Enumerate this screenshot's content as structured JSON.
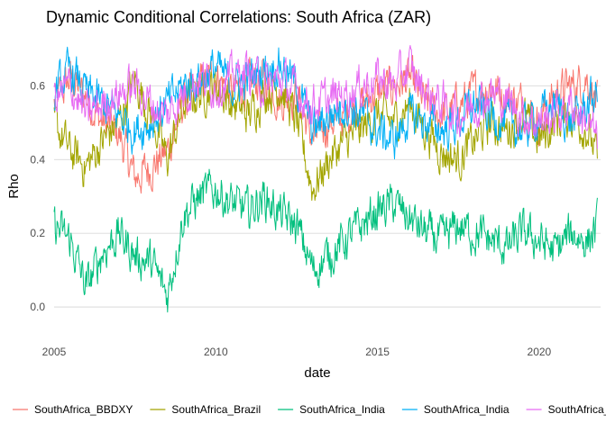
{
  "chart_data": {
    "type": "line",
    "title": "Dynamic Conditional Correlations: South Africa (ZAR)",
    "xlabel": "date",
    "ylabel": "Rho",
    "xlim": [
      2005,
      2021.9
    ],
    "ylim": [
      -0.09,
      0.74
    ],
    "x_ticks": [
      2005,
      2010,
      2015,
      2020
    ],
    "x_tick_labels": [
      "2005",
      "2010",
      "2015",
      "2020"
    ],
    "y_ticks": [
      0.0,
      0.2,
      0.4,
      0.6
    ],
    "y_tick_labels": [
      "0.0",
      "0.2",
      "0.4",
      "0.6"
    ],
    "grid": true,
    "legend_position": "bottom",
    "legend_title_visible_fragment": "s",
    "series": [
      {
        "name": "SouthAfrica_BBDXY",
        "color": "#F8766D",
        "x": [
          2005,
          2005.5,
          2006,
          2006.5,
          2007,
          2007.5,
          2008,
          2008.5,
          2009,
          2009.5,
          2010,
          2010.5,
          2011,
          2011.5,
          2012,
          2012.5,
          2013,
          2013.5,
          2014,
          2014.5,
          2015,
          2015.5,
          2016,
          2016.5,
          2017,
          2017.5,
          2018,
          2018.5,
          2019,
          2019.5,
          2020,
          2020.5,
          2021,
          2021.5,
          2021.8
        ],
        "y": [
          0.55,
          0.62,
          0.57,
          0.5,
          0.47,
          0.35,
          0.38,
          0.42,
          0.55,
          0.6,
          0.63,
          0.58,
          0.6,
          0.62,
          0.56,
          0.58,
          0.45,
          0.5,
          0.52,
          0.55,
          0.58,
          0.6,
          0.62,
          0.55,
          0.52,
          0.55,
          0.58,
          0.6,
          0.57,
          0.55,
          0.5,
          0.58,
          0.6,
          0.62,
          0.55
        ]
      },
      {
        "name": "SouthAfrica_Brazil",
        "color": "#A3A500",
        "x": [
          2005,
          2005.5,
          2006,
          2006.5,
          2007,
          2007.5,
          2008,
          2008.5,
          2009,
          2009.5,
          2010,
          2010.5,
          2011,
          2011.5,
          2012,
          2012.5,
          2013,
          2013.5,
          2014,
          2014.5,
          2015,
          2015.5,
          2016,
          2016.5,
          2017,
          2017.5,
          2018,
          2018.5,
          2019,
          2019.5,
          2020,
          2020.5,
          2021,
          2021.5,
          2021.8
        ],
        "y": [
          0.5,
          0.42,
          0.38,
          0.45,
          0.5,
          0.62,
          0.52,
          0.4,
          0.55,
          0.58,
          0.6,
          0.55,
          0.52,
          0.58,
          0.6,
          0.5,
          0.32,
          0.4,
          0.45,
          0.48,
          0.52,
          0.5,
          0.55,
          0.48,
          0.42,
          0.4,
          0.45,
          0.5,
          0.48,
          0.52,
          0.45,
          0.5,
          0.52,
          0.48,
          0.4
        ]
      },
      {
        "name": "SouthAfrica_India",
        "color": "#00BF7D",
        "x": [
          2005,
          2005.5,
          2006,
          2006.5,
          2007,
          2007.5,
          2008,
          2008.5,
          2009,
          2009.5,
          2010,
          2010.5,
          2011,
          2011.5,
          2012,
          2012.5,
          2013,
          2013.5,
          2014,
          2014.5,
          2015,
          2015.5,
          2016,
          2016.5,
          2017,
          2017.5,
          2018,
          2018.5,
          2019,
          2019.5,
          2020,
          2020.5,
          2021,
          2021.5,
          2021.8
        ],
        "y": [
          0.22,
          0.18,
          0.05,
          0.15,
          0.2,
          0.14,
          0.12,
          0.03,
          0.25,
          0.3,
          0.32,
          0.28,
          0.26,
          0.3,
          0.25,
          0.22,
          0.1,
          0.14,
          0.18,
          0.22,
          0.26,
          0.28,
          0.24,
          0.2,
          0.18,
          0.22,
          0.2,
          0.18,
          0.16,
          0.2,
          0.18,
          0.15,
          0.2,
          0.18,
          0.22
        ]
      },
      {
        "name": "SouthAfrica_India",
        "color": "#00B0F6",
        "x": [
          2005,
          2005.5,
          2006,
          2006.5,
          2007,
          2007.5,
          2008,
          2008.5,
          2009,
          2009.5,
          2010,
          2010.5,
          2011,
          2011.5,
          2012,
          2012.5,
          2013,
          2013.5,
          2014,
          2014.5,
          2015,
          2015.5,
          2016,
          2016.5,
          2017,
          2017.5,
          2018,
          2018.5,
          2019,
          2019.5,
          2020,
          2020.5,
          2021,
          2021.5,
          2021.8
        ],
        "y": [
          0.58,
          0.64,
          0.58,
          0.55,
          0.52,
          0.48,
          0.5,
          0.55,
          0.6,
          0.62,
          0.65,
          0.6,
          0.62,
          0.65,
          0.66,
          0.6,
          0.48,
          0.52,
          0.55,
          0.52,
          0.48,
          0.45,
          0.52,
          0.5,
          0.48,
          0.5,
          0.55,
          0.52,
          0.5,
          0.48,
          0.52,
          0.55,
          0.5,
          0.55,
          0.58
        ]
      },
      {
        "name": "SouthAfrica_Poland",
        "color": "#E76BF3",
        "x": [
          2005,
          2005.5,
          2006,
          2006.5,
          2007,
          2007.5,
          2008,
          2008.5,
          2009,
          2009.5,
          2010,
          2010.5,
          2011,
          2011.5,
          2012,
          2012.5,
          2013,
          2013.5,
          2014,
          2014.5,
          2015,
          2015.5,
          2016,
          2016.5,
          2017,
          2017.5,
          2018,
          2018.5,
          2019,
          2019.5,
          2020,
          2020.5,
          2021,
          2021.5,
          2021.8
        ],
        "y": [
          0.56,
          0.6,
          0.52,
          0.55,
          0.58,
          0.6,
          0.55,
          0.52,
          0.58,
          0.62,
          0.6,
          0.62,
          0.64,
          0.6,
          0.62,
          0.58,
          0.55,
          0.56,
          0.58,
          0.6,
          0.62,
          0.6,
          0.65,
          0.58,
          0.55,
          0.52,
          0.55,
          0.58,
          0.56,
          0.52,
          0.5,
          0.52,
          0.55,
          0.5,
          0.45
        ]
      }
    ]
  }
}
